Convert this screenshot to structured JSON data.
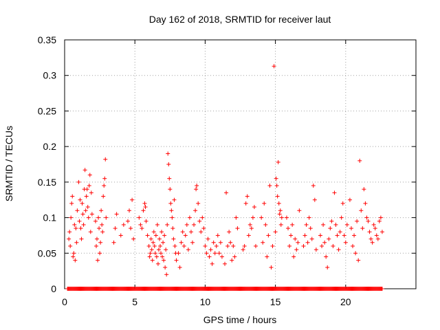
{
  "chart_data": {
    "type": "scatter",
    "title": "Day 162 of 2018, SRMTID for receiver laut",
    "xlabel": "GPS time / hours",
    "ylabel": "SRMTID / TECUs",
    "xlim": [
      0,
      25
    ],
    "ylim": [
      0,
      0.35
    ],
    "x_ticks": [
      0,
      5,
      10,
      15,
      20
    ],
    "y_ticks": [
      0,
      0.05,
      0.1,
      0.15,
      0.2,
      0.25,
      0.3,
      0.35
    ],
    "x_tick_labels": [
      "0",
      "5",
      "10",
      "15",
      "20"
    ],
    "y_tick_labels": [
      "0",
      "0.05",
      "0.1",
      "0.15",
      "0.2",
      "0.25",
      "0.3",
      "0.35"
    ],
    "grid": true,
    "marker": "+",
    "series_color": "#ff0000",
    "series": [
      {
        "name": "SRMTID",
        "points": [
          [
            0.3,
            0.07
          ],
          [
            0.35,
            0.08
          ],
          [
            0.4,
            0.06
          ],
          [
            0.45,
            0.1
          ],
          [
            0.5,
            0.12
          ],
          [
            0.55,
            0.13
          ],
          [
            0.6,
            0.045
          ],
          [
            0.65,
            0.05
          ],
          [
            0.7,
            0.09
          ],
          [
            0.75,
            0.04
          ],
          [
            0.8,
            0.085
          ],
          [
            0.85,
            0.065
          ],
          [
            0.9,
            0.11
          ],
          [
            1.0,
            0.15
          ],
          [
            1.05,
            0.095
          ],
          [
            1.1,
            0.125
          ],
          [
            1.15,
            0.085
          ],
          [
            1.2,
            0.07
          ],
          [
            1.25,
            0.12
          ],
          [
            1.3,
            0.105
          ],
          [
            1.35,
            0.09
          ],
          [
            1.4,
            0.14
          ],
          [
            1.45,
            0.167
          ],
          [
            1.5,
            0.11
          ],
          [
            1.55,
            0.13
          ],
          [
            1.6,
            0.14
          ],
          [
            1.65,
            0.115
          ],
          [
            1.7,
            0.1
          ],
          [
            1.75,
            0.145
          ],
          [
            1.8,
            0.16
          ],
          [
            1.85,
            0.08
          ],
          [
            1.9,
            0.135
          ],
          [
            1.95,
            0.105
          ],
          [
            2.2,
            0.095
          ],
          [
            2.25,
            0.06
          ],
          [
            2.3,
            0.07
          ],
          [
            2.35,
            0.04
          ],
          [
            2.4,
            0.1
          ],
          [
            2.45,
            0.085
          ],
          [
            2.5,
            0.05
          ],
          [
            2.55,
            0.065
          ],
          [
            2.6,
            0.11
          ],
          [
            2.65,
            0.09
          ],
          [
            2.7,
            0.08
          ],
          [
            2.75,
            0.13
          ],
          [
            2.8,
            0.145
          ],
          [
            2.85,
            0.155
          ],
          [
            2.9,
            0.182
          ],
          [
            2.95,
            0.1
          ],
          [
            3.5,
            0.065
          ],
          [
            3.6,
            0.085
          ],
          [
            3.7,
            0.105
          ],
          [
            4.0,
            0.075
          ],
          [
            4.2,
            0.09
          ],
          [
            4.5,
            0.095
          ],
          [
            4.6,
            0.11
          ],
          [
            4.7,
            0.085
          ],
          [
            4.8,
            0.125
          ],
          [
            4.9,
            0.07
          ],
          [
            5.3,
            0.1
          ],
          [
            5.4,
            0.09
          ],
          [
            5.5,
            0.085
          ],
          [
            5.6,
            0.11
          ],
          [
            5.7,
            0.12
          ],
          [
            5.75,
            0.115
          ],
          [
            5.8,
            0.095
          ],
          [
            5.9,
            0.075
          ],
          [
            6.0,
            0.06
          ],
          [
            6.05,
            0.045
          ],
          [
            6.1,
            0.05
          ],
          [
            6.15,
            0.07
          ],
          [
            6.2,
            0.055
          ],
          [
            6.25,
            0.04
          ],
          [
            6.3,
            0.065
          ],
          [
            6.35,
            0.08
          ],
          [
            6.4,
            0.06
          ],
          [
            6.45,
            0.05
          ],
          [
            6.5,
            0.075
          ],
          [
            6.55,
            0.045
          ],
          [
            6.6,
            0.09
          ],
          [
            6.65,
            0.035
          ],
          [
            6.7,
            0.055
          ],
          [
            6.75,
            0.07
          ],
          [
            6.8,
            0.06
          ],
          [
            6.85,
            0.05
          ],
          [
            6.9,
            0.08
          ],
          [
            6.95,
            0.045
          ],
          [
            7.0,
            0.065
          ],
          [
            7.05,
            0.04
          ],
          [
            7.1,
            0.075
          ],
          [
            7.15,
            0.03
          ],
          [
            7.2,
            0.055
          ],
          [
            7.25,
            0.02
          ],
          [
            7.3,
            0.09
          ],
          [
            7.35,
            0.19
          ],
          [
            7.4,
            0.175
          ],
          [
            7.45,
            0.155
          ],
          [
            7.5,
            0.14
          ],
          [
            7.55,
            0.12
          ],
          [
            7.6,
            0.11
          ],
          [
            7.65,
            0.1
          ],
          [
            7.7,
            0.085
          ],
          [
            7.75,
            0.07
          ],
          [
            7.8,
            0.125
          ],
          [
            7.85,
            0.06
          ],
          [
            7.9,
            0.05
          ],
          [
            7.95,
            0.04
          ],
          [
            8.1,
            0.05
          ],
          [
            8.2,
            0.03
          ],
          [
            8.3,
            0.065
          ],
          [
            8.4,
            0.08
          ],
          [
            8.5,
            0.06
          ],
          [
            8.6,
            0.075
          ],
          [
            8.7,
            0.09
          ],
          [
            8.8,
            0.055
          ],
          [
            8.9,
            0.1
          ],
          [
            9.0,
            0.08
          ],
          [
            9.1,
            0.065
          ],
          [
            9.2,
            0.09
          ],
          [
            9.3,
            0.11
          ],
          [
            9.35,
            0.14
          ],
          [
            9.4,
            0.145
          ],
          [
            9.5,
            0.12
          ],
          [
            9.6,
            0.095
          ],
          [
            9.7,
            0.08
          ],
          [
            9.8,
            0.1
          ],
          [
            9.9,
            0.085
          ],
          [
            10.0,
            0.06
          ],
          [
            10.1,
            0.05
          ],
          [
            10.2,
            0.07
          ],
          [
            10.3,
            0.045
          ],
          [
            10.4,
            0.055
          ],
          [
            10.5,
            0.035
          ],
          [
            10.6,
            0.065
          ],
          [
            10.7,
            0.05
          ],
          [
            10.8,
            0.06
          ],
          [
            10.9,
            0.075
          ],
          [
            11.0,
            0.05
          ],
          [
            11.1,
            0.065
          ],
          [
            11.2,
            0.045
          ],
          [
            11.4,
            0.035
          ],
          [
            11.5,
            0.135
          ],
          [
            11.6,
            0.06
          ],
          [
            11.7,
            0.08
          ],
          [
            11.8,
            0.065
          ],
          [
            11.9,
            0.04
          ],
          [
            12.0,
            0.06
          ],
          [
            12.1,
            0.045
          ],
          [
            12.2,
            0.1
          ],
          [
            12.3,
            0.085
          ],
          [
            12.7,
            0.055
          ],
          [
            12.8,
            0.06
          ],
          [
            12.9,
            0.12
          ],
          [
            13.0,
            0.13
          ],
          [
            13.1,
            0.075
          ],
          [
            13.2,
            0.09
          ],
          [
            13.3,
            0.085
          ],
          [
            13.4,
            0.1
          ],
          [
            13.5,
            0.115
          ],
          [
            13.6,
            0.06
          ],
          [
            14.0,
            0.1
          ],
          [
            14.1,
            0.065
          ],
          [
            14.2,
            0.12
          ],
          [
            14.3,
            0.09
          ],
          [
            14.4,
            0.045
          ],
          [
            14.5,
            0.075
          ],
          [
            14.6,
            0.145
          ],
          [
            14.7,
            0.03
          ],
          [
            14.8,
            0.06
          ],
          [
            14.9,
            0.313
          ],
          [
            15.0,
            0.08
          ],
          [
            15.05,
            0.155
          ],
          [
            15.1,
            0.145
          ],
          [
            15.15,
            0.13
          ],
          [
            15.2,
            0.178
          ],
          [
            15.25,
            0.12
          ],
          [
            15.3,
            0.105
          ],
          [
            15.35,
            0.11
          ],
          [
            15.4,
            0.09
          ],
          [
            15.45,
            0.1
          ],
          [
            15.8,
            0.1
          ],
          [
            15.9,
            0.085
          ],
          [
            16.0,
            0.06
          ],
          [
            16.1,
            0.075
          ],
          [
            16.2,
            0.09
          ],
          [
            16.3,
            0.045
          ],
          [
            16.4,
            0.07
          ],
          [
            16.5,
            0.055
          ],
          [
            16.6,
            0.065
          ],
          [
            16.7,
            0.11
          ],
          [
            17.0,
            0.06
          ],
          [
            17.1,
            0.075
          ],
          [
            17.2,
            0.09
          ],
          [
            17.3,
            0.065
          ],
          [
            17.4,
            0.1
          ],
          [
            17.5,
            0.085
          ],
          [
            17.6,
            0.07
          ],
          [
            17.7,
            0.145
          ],
          [
            17.8,
            0.125
          ],
          [
            17.9,
            0.055
          ],
          [
            18.2,
            0.075
          ],
          [
            18.3,
            0.06
          ],
          [
            18.4,
            0.09
          ],
          [
            18.5,
            0.065
          ],
          [
            18.6,
            0.045
          ],
          [
            18.7,
            0.03
          ],
          [
            18.8,
            0.07
          ],
          [
            18.9,
            0.085
          ],
          [
            19.0,
            0.095
          ],
          [
            19.1,
            0.06
          ],
          [
            19.2,
            0.135
          ],
          [
            19.3,
            0.09
          ],
          [
            19.4,
            0.075
          ],
          [
            19.5,
            0.055
          ],
          [
            19.6,
            0.08
          ],
          [
            19.7,
            0.1
          ],
          [
            19.8,
            0.12
          ],
          [
            19.9,
            0.075
          ],
          [
            20.0,
            0.065
          ],
          [
            20.1,
            0.09
          ],
          [
            20.3,
            0.125
          ],
          [
            20.4,
            0.085
          ],
          [
            20.5,
            0.06
          ],
          [
            20.6,
            0.075
          ],
          [
            20.7,
            0.05
          ],
          [
            20.8,
            0.095
          ],
          [
            20.9,
            0.04
          ],
          [
            21.0,
            0.18
          ],
          [
            21.1,
            0.11
          ],
          [
            21.2,
            0.085
          ],
          [
            21.3,
            0.14
          ],
          [
            21.4,
            0.12
          ],
          [
            21.5,
            0.1
          ],
          [
            21.6,
            0.095
          ],
          [
            21.7,
            0.08
          ],
          [
            21.8,
            0.07
          ],
          [
            21.9,
            0.065
          ],
          [
            22.0,
            0.09
          ],
          [
            22.1,
            0.085
          ],
          [
            22.2,
            0.075
          ],
          [
            22.3,
            0.07
          ],
          [
            22.4,
            0.095
          ],
          [
            22.5,
            0.1
          ],
          [
            22.6,
            0.08
          ]
        ],
        "zero_band": {
          "x_start": 0.2,
          "x_end": 22.6,
          "y": 0
        }
      }
    ]
  }
}
